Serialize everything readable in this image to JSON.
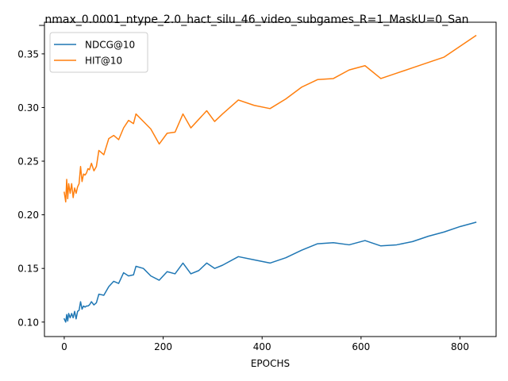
{
  "chart_data": {
    "type": "line",
    "title": "_nmax_0.0001_ntype_2.0_hact_silu_46_video_subgames_R=1_MaskU=0_San",
    "xlabel": "EPOCHS",
    "ylabel": "",
    "xlim": [
      -40,
      873
    ],
    "ylim": [
      0.0865,
      0.3795
    ],
    "x_ticks": [
      0,
      200,
      400,
      600,
      800
    ],
    "x_tick_labels": [
      "0",
      "200",
      "400",
      "600",
      "800"
    ],
    "y_ticks": [
      0.1,
      0.15,
      0.2,
      0.25,
      0.3,
      0.35
    ],
    "y_tick_labels": [
      "0.10",
      "0.15",
      "0.20",
      "0.25",
      "0.30",
      "0.35"
    ],
    "grid": false,
    "legend_position": "upper-left",
    "series": [
      {
        "name": "NDCG@10",
        "color": "#1f77b4",
        "x": [
          0,
          3,
          5,
          7,
          9,
          12,
          15,
          18,
          21,
          24,
          27,
          30,
          33,
          36,
          39,
          42,
          45,
          48,
          51,
          55,
          60,
          65,
          70,
          80,
          90,
          100,
          110,
          120,
          130,
          140,
          145,
          160,
          175,
          192,
          208,
          224,
          240,
          256,
          272,
          288,
          304,
          320,
          352,
          384,
          416,
          448,
          480,
          512,
          544,
          576,
          608,
          640,
          672,
          704,
          736,
          768,
          800,
          832
        ],
        "y": [
          0.103,
          0.1,
          0.107,
          0.101,
          0.108,
          0.104,
          0.108,
          0.104,
          0.11,
          0.103,
          0.11,
          0.111,
          0.119,
          0.112,
          0.115,
          0.114,
          0.115,
          0.115,
          0.116,
          0.119,
          0.116,
          0.118,
          0.126,
          0.125,
          0.133,
          0.138,
          0.136,
          0.146,
          0.143,
          0.144,
          0.152,
          0.15,
          0.143,
          0.139,
          0.147,
          0.145,
          0.155,
          0.145,
          0.148,
          0.155,
          0.15,
          0.153,
          0.161,
          0.158,
          0.155,
          0.16,
          0.167,
          0.173,
          0.174,
          0.172,
          0.176,
          0.171,
          0.172,
          0.175,
          0.18,
          0.184,
          0.189,
          0.193
        ]
      },
      {
        "name": "HIT@10",
        "color": "#ff7f0e",
        "x": [
          0,
          3,
          5,
          7,
          9,
          12,
          15,
          18,
          21,
          24,
          27,
          30,
          33,
          36,
          39,
          42,
          45,
          48,
          51,
          55,
          60,
          65,
          70,
          80,
          90,
          100,
          110,
          120,
          130,
          140,
          145,
          160,
          175,
          192,
          208,
          224,
          240,
          256,
          272,
          288,
          304,
          320,
          352,
          384,
          416,
          448,
          480,
          512,
          544,
          576,
          608,
          640,
          672,
          704,
          736,
          768,
          800,
          832
        ],
        "y": [
          0.221,
          0.212,
          0.233,
          0.215,
          0.229,
          0.22,
          0.229,
          0.216,
          0.225,
          0.22,
          0.226,
          0.229,
          0.245,
          0.231,
          0.238,
          0.237,
          0.239,
          0.243,
          0.242,
          0.248,
          0.241,
          0.245,
          0.26,
          0.256,
          0.271,
          0.274,
          0.27,
          0.281,
          0.288,
          0.285,
          0.294,
          0.287,
          0.28,
          0.266,
          0.276,
          0.277,
          0.294,
          0.281,
          0.289,
          0.297,
          0.287,
          0.294,
          0.307,
          0.302,
          0.299,
          0.308,
          0.319,
          0.326,
          0.327,
          0.335,
          0.339,
          0.327,
          0.332,
          0.337,
          0.342,
          0.347,
          0.357,
          0.367
        ]
      }
    ]
  }
}
